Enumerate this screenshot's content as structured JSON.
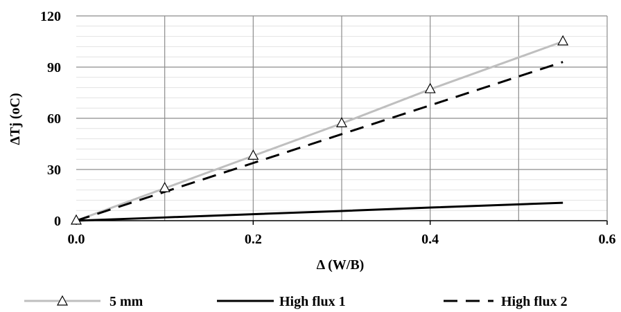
{
  "chart_data": {
    "type": "line",
    "xlabel": "Δ (W/B)",
    "ylabel": "ΔTj (oC)",
    "xlim": [
      0,
      0.6
    ],
    "ylim": [
      0,
      120
    ],
    "x_ticks": [
      0.0,
      0.2,
      0.4,
      0.6
    ],
    "x_tick_labels": [
      "0.0",
      "0.2",
      "0.4",
      "0.6"
    ],
    "y_ticks": [
      0,
      30,
      60,
      90,
      120
    ],
    "y_tick_labels": [
      "0",
      "30",
      "60",
      "90",
      "120"
    ],
    "x_grid": [
      0.1,
      0.2,
      0.3,
      0.4,
      0.5
    ],
    "y_grid_major": [
      30,
      60,
      90,
      120
    ],
    "y_grid_minor_step": 6,
    "grid": true,
    "legend_position": "bottom",
    "series": [
      {
        "name": "5 mm",
        "color": "#bfbfbf",
        "dash": "solid",
        "marker": "triangle",
        "x": [
          0,
          0.1,
          0.2,
          0.3,
          0.4,
          0.55
        ],
        "y": [
          0,
          19,
          38,
          57,
          77,
          105
        ]
      },
      {
        "name": "High flux 1",
        "color": "#000000",
        "dash": "solid",
        "marker": "none",
        "x": [
          0,
          0.1,
          0.2,
          0.3,
          0.4,
          0.55
        ],
        "y": [
          0,
          1.9,
          3.8,
          5.7,
          7.7,
          10.5
        ]
      },
      {
        "name": "High flux 2",
        "color": "#000000",
        "dash": "dashed",
        "marker": "none",
        "x": [
          0,
          0.1,
          0.2,
          0.3,
          0.4,
          0.55
        ],
        "y": [
          0,
          16.9,
          33.8,
          50.7,
          67.6,
          93
        ]
      }
    ]
  }
}
